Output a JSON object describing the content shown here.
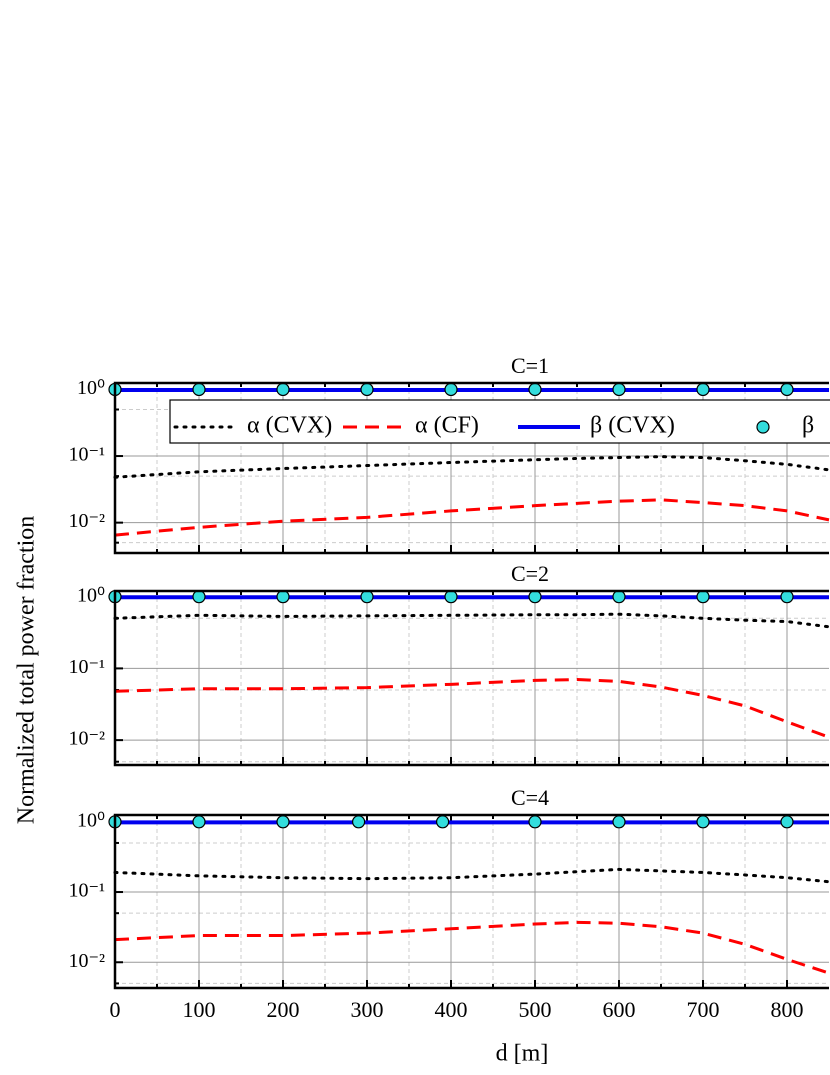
{
  "xlabel": "d [m]",
  "ylabel": "Normalized total power fraction",
  "chart_data": [
    {
      "type": "line",
      "title": "C=1",
      "log_y": true,
      "grid": true,
      "x": [
        0,
        100,
        200,
        300,
        400,
        500,
        550,
        600,
        650,
        700,
        750,
        800,
        850
      ],
      "series": [
        {
          "name": "α (CVX)",
          "color": "#000000",
          "style": "dotted",
          "values": [
            0.048,
            0.058,
            0.065,
            0.072,
            0.08,
            0.088,
            0.092,
            0.095,
            0.098,
            0.095,
            0.085,
            0.075,
            0.062
          ]
        },
        {
          "name": "α (CF)",
          "color": "#ff0000",
          "style": "dashed",
          "values": [
            0.0065,
            0.0085,
            0.0105,
            0.012,
            0.015,
            0.018,
            0.0195,
            0.021,
            0.022,
            0.02,
            0.018,
            0.015,
            0.011
          ]
        },
        {
          "name": "β (CVX)",
          "color": "#0000ee",
          "style": "solid",
          "values": [
            0.98,
            0.98,
            0.98,
            0.98,
            0.98,
            0.98,
            0.98,
            0.98,
            0.98,
            0.98,
            0.98,
            0.98,
            0.98
          ]
        },
        {
          "name": "β",
          "color": "#33dddd",
          "style": "marker",
          "x": [
            0,
            100,
            200,
            300,
            400,
            500,
            600,
            700,
            800
          ],
          "values": [
            1,
            1,
            1,
            1,
            1,
            1,
            1,
            1,
            1
          ]
        }
      ],
      "xlim": [
        0,
        850
      ],
      "xticks": [
        0,
        100,
        200,
        300,
        400,
        500,
        600,
        700,
        800
      ],
      "xminorticks": [
        50,
        150,
        250,
        350,
        450,
        550,
        650,
        750
      ],
      "ylim": [
        0.0035,
        1.25
      ],
      "yticks": [
        {
          "value": 1,
          "label": "10⁰"
        },
        {
          "value": 0.1,
          "label": "10⁻¹"
        },
        {
          "value": 0.01,
          "label": "10⁻²"
        }
      ],
      "yminorticks": [
        0.5,
        0.05,
        0.005
      ]
    },
    {
      "type": "line",
      "title": "C=2",
      "log_y": true,
      "grid": true,
      "x": [
        0,
        100,
        200,
        300,
        400,
        500,
        550,
        600,
        650,
        700,
        750,
        800,
        850
      ],
      "series": [
        {
          "color": "#000000",
          "style": "dotted",
          "values": [
            0.5,
            0.55,
            0.53,
            0.54,
            0.55,
            0.56,
            0.56,
            0.57,
            0.54,
            0.5,
            0.47,
            0.45,
            0.38
          ]
        },
        {
          "color": "#ff0000",
          "style": "dashed",
          "values": [
            0.048,
            0.052,
            0.052,
            0.054,
            0.06,
            0.068,
            0.07,
            0.066,
            0.055,
            0.042,
            0.03,
            0.018,
            0.011
          ]
        },
        {
          "color": "#0000ee",
          "style": "solid",
          "values": [
            0.98,
            0.98,
            0.98,
            0.98,
            0.98,
            0.98,
            0.98,
            0.98,
            0.98,
            0.98,
            0.98,
            0.98,
            0.98
          ]
        },
        {
          "color": "#33dddd",
          "style": "marker",
          "x": [
            0,
            100,
            200,
            300,
            400,
            500,
            600,
            700,
            800
          ],
          "values": [
            1,
            1,
            1,
            1,
            1,
            1,
            1,
            1,
            1
          ]
        }
      ],
      "xlim": [
        0,
        850
      ],
      "xticks": [
        0,
        100,
        200,
        300,
        400,
        500,
        600,
        700,
        800
      ],
      "xminorticks": [
        50,
        150,
        250,
        350,
        450,
        550,
        650,
        750
      ],
      "ylim": [
        0.0045,
        1.2
      ],
      "yticks": [
        {
          "value": 1,
          "label": "10⁰"
        },
        {
          "value": 0.1,
          "label": "10⁻¹"
        },
        {
          "value": 0.01,
          "label": "10⁻²"
        }
      ],
      "yminorticks": [
        0.5,
        0.05,
        0.005
      ]
    },
    {
      "type": "line",
      "title": "C=4",
      "log_y": true,
      "grid": true,
      "x": [
        0,
        100,
        200,
        300,
        400,
        500,
        550,
        600,
        650,
        700,
        750,
        800,
        850
      ],
      "series": [
        {
          "color": "#000000",
          "style": "dotted",
          "values": [
            0.19,
            0.17,
            0.16,
            0.155,
            0.16,
            0.18,
            0.195,
            0.21,
            0.2,
            0.19,
            0.175,
            0.16,
            0.14
          ]
        },
        {
          "color": "#ff0000",
          "style": "dashed",
          "values": [
            0.021,
            0.024,
            0.024,
            0.026,
            0.03,
            0.035,
            0.037,
            0.036,
            0.032,
            0.026,
            0.018,
            0.011,
            0.007
          ]
        },
        {
          "color": "#0000ee",
          "style": "solid",
          "values": [
            0.98,
            0.98,
            0.98,
            0.98,
            0.98,
            0.98,
            0.98,
            0.98,
            0.98,
            0.98,
            0.98,
            0.98,
            0.98
          ]
        },
        {
          "color": "#33dddd",
          "style": "marker",
          "x": [
            0,
            100,
            200,
            290,
            390,
            500,
            600,
            700,
            800
          ],
          "values": [
            1,
            1,
            1,
            1,
            1,
            1,
            1,
            1,
            1
          ]
        }
      ],
      "xlim": [
        0,
        850
      ],
      "xticks": [
        0,
        100,
        200,
        300,
        400,
        500,
        600,
        700,
        800
      ],
      "xminorticks": [
        50,
        150,
        250,
        350,
        450,
        550,
        650,
        750
      ],
      "ylim": [
        0.0043,
        1.25
      ],
      "yticks": [
        {
          "value": 1,
          "label": "10⁰"
        },
        {
          "value": 0.1,
          "label": "10⁻¹"
        },
        {
          "value": 0.01,
          "label": "10⁻²"
        }
      ],
      "yminorticks": [
        0.5,
        0.05,
        0.005
      ]
    }
  ]
}
